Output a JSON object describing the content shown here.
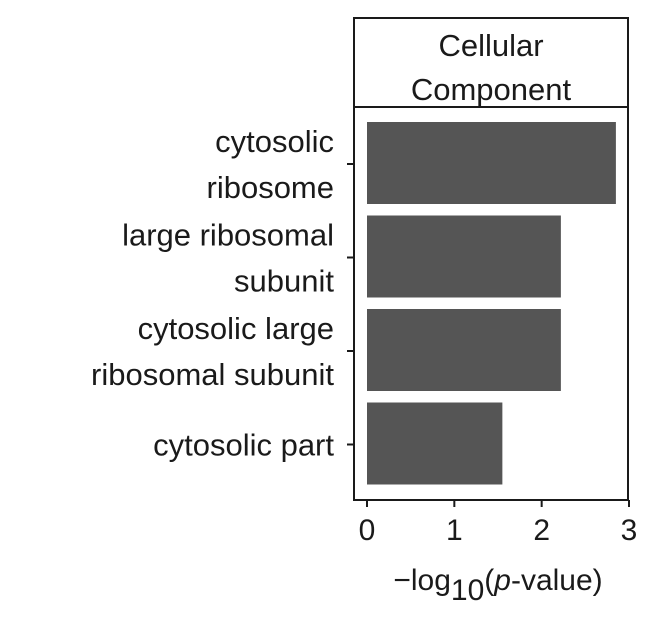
{
  "chart_data": {
    "type": "bar",
    "orientation": "horizontal",
    "facet_title": [
      "Cellular",
      "Component"
    ],
    "categories": [
      [
        "cytosolic",
        "ribosome"
      ],
      [
        "large ribosomal",
        "subunit"
      ],
      [
        "cytosolic large",
        "ribosomal subunit"
      ],
      [
        "cytosolic part"
      ]
    ],
    "values": [
      2.85,
      2.22,
      2.22,
      1.55
    ],
    "xlim": [
      0,
      3
    ],
    "xticks": [
      "0",
      "1",
      "2",
      "3"
    ],
    "xlabel": {
      "prefix": "−log",
      "subscript": "10",
      "open": "(",
      "italic": "p",
      "suffix": "-value)"
    },
    "bar_color": "#555555",
    "grid": false
  }
}
